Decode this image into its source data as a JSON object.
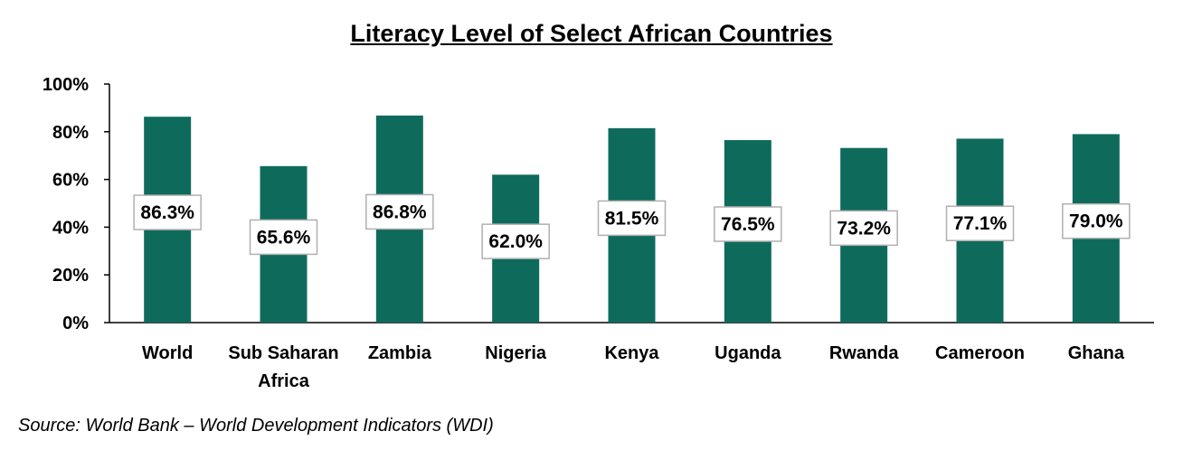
{
  "chart_data": {
    "type": "bar",
    "title": "Literacy Level of Select African Countries",
    "xlabel": "",
    "ylabel": "",
    "ylim": [
      0,
      100
    ],
    "yticks": [
      "0%",
      "20%",
      "40%",
      "60%",
      "80%",
      "100%"
    ],
    "categories": [
      [
        "World"
      ],
      [
        "Sub Saharan",
        "Africa"
      ],
      [
        "Zambia"
      ],
      [
        "Nigeria"
      ],
      [
        "Kenya"
      ],
      [
        "Uganda"
      ],
      [
        "Rwanda"
      ],
      [
        "Cameroon"
      ],
      [
        "Ghana"
      ]
    ],
    "values": [
      86.3,
      65.6,
      86.8,
      62.0,
      81.5,
      76.5,
      73.2,
      77.1,
      79.0
    ],
    "data_labels": [
      "86.3%",
      "65.6%",
      "86.8%",
      "62.0%",
      "81.5%",
      "76.5%",
      "73.2%",
      "77.1%",
      "79.0%"
    ],
    "bar_color": "#0e6b5c",
    "grid": false,
    "legend": "none"
  },
  "source_note": "Source: World Bank – World Development Indicators (WDI)"
}
